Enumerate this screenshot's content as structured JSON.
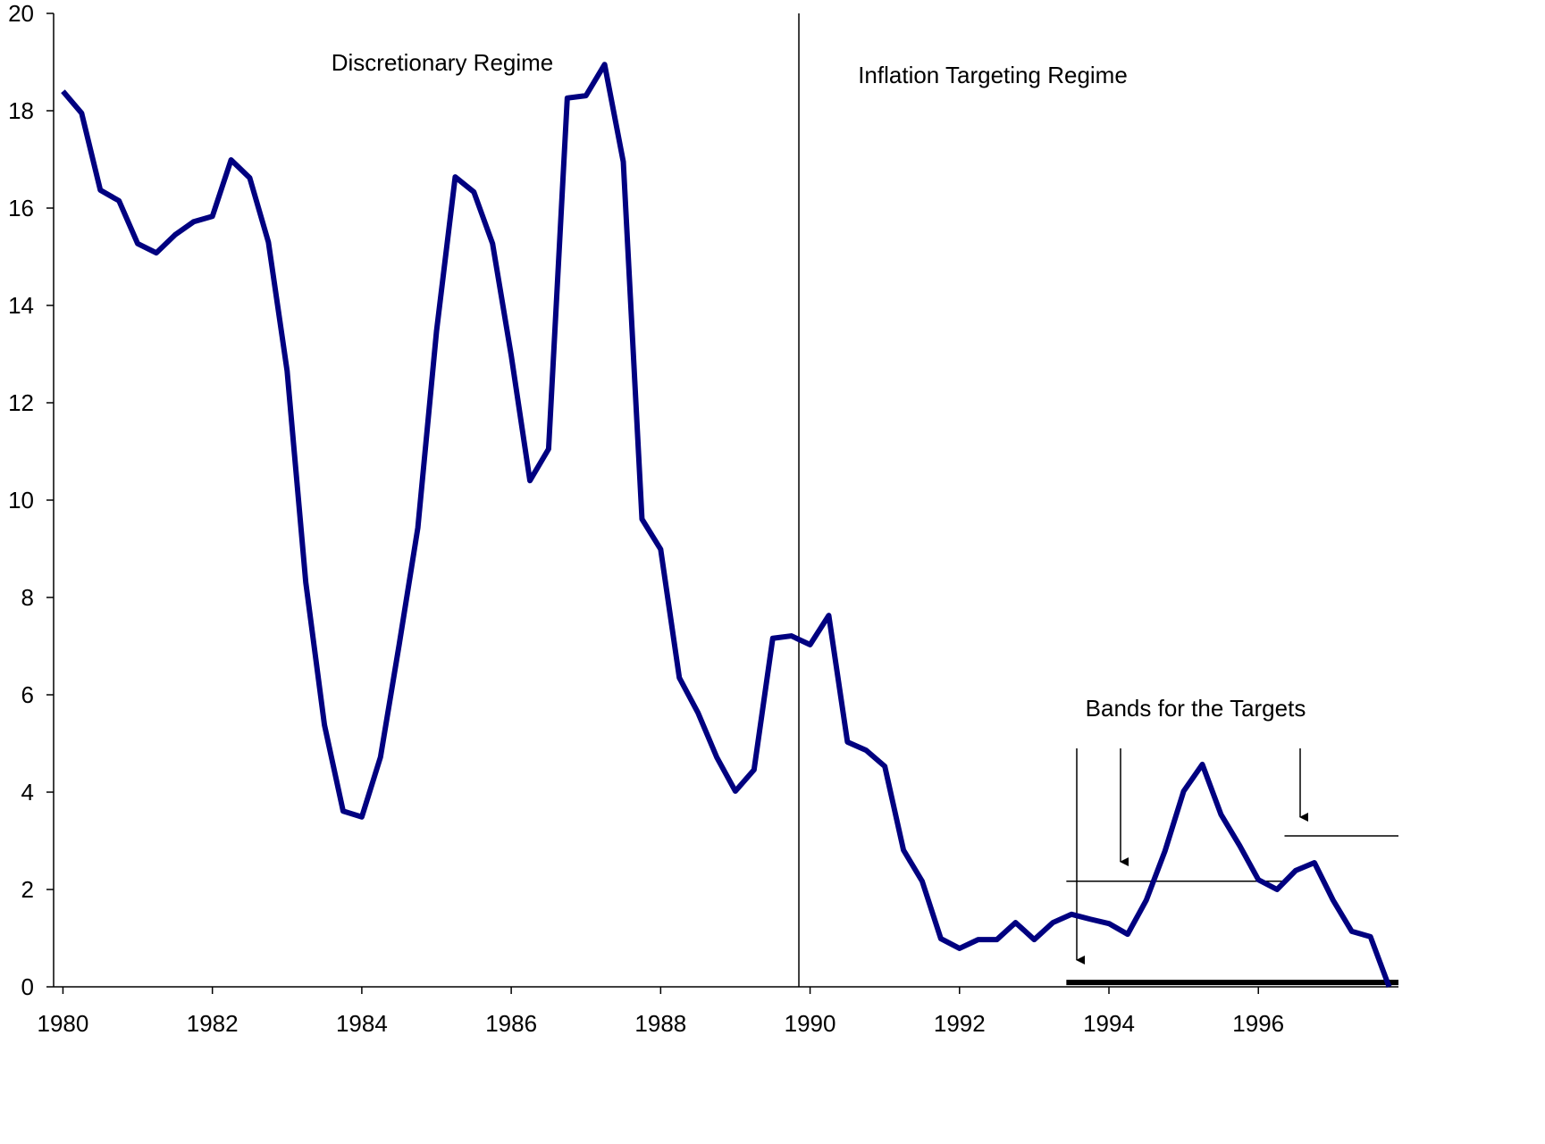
{
  "chart_data": {
    "type": "line",
    "annotations": [
      "Discretionary Regime",
      "Inflation Targeting Regime",
      "Bands for the Targets"
    ],
    "x": [
      1980,
      1980.25,
      1980.5,
      1980.75,
      1981,
      1981.25,
      1981.5,
      1981.75,
      1982,
      1982.25,
      1982.5,
      1982.75,
      1983,
      1983.25,
      1983.5,
      1983.75,
      1984,
      1984.25,
      1984.5,
      1984.75,
      1985,
      1985.25,
      1985.5,
      1985.75,
      1986,
      1986.25,
      1986.5,
      1986.75,
      1987,
      1987.25,
      1987.5,
      1987.75,
      1988,
      1988.25,
      1988.5,
      1988.75,
      1989,
      1989.25,
      1989.5,
      1989.75,
      1990,
      1990.25,
      1990.5,
      1990.75,
      1991,
      1991.25,
      1991.5,
      1991.75,
      1992,
      1992.25,
      1992.5,
      1992.75,
      1993,
      1993.25,
      1993.5,
      1993.75,
      1994,
      1994.25,
      1994.5,
      1994.75,
      1995,
      1995.25,
      1995.5,
      1995.75,
      1996,
      1996.25,
      1996.5,
      1996.75,
      1997,
      1997.25,
      1997.5,
      1997.75
    ],
    "series": [
      {
        "color": "#000080",
        "values": [
          18.4,
          17.95,
          16.37,
          16.15,
          15.27,
          15.08,
          15.45,
          15.72,
          15.83,
          16.99,
          16.62,
          15.3,
          12.66,
          8.31,
          5.38,
          3.61,
          3.49,
          4.72,
          7.03,
          9.43,
          13.47,
          16.64,
          16.33,
          15.27,
          12.97,
          10.4,
          11.05,
          18.26,
          18.31,
          18.95,
          16.95,
          9.61,
          8.99,
          6.35,
          5.63,
          4.72,
          4.02,
          4.46,
          7.16,
          7.21,
          7.03,
          7.63,
          5.03,
          4.86,
          4.53,
          2.81,
          2.17,
          0.99,
          0.79,
          0.97,
          0.97,
          1.32,
          0.97,
          1.32,
          1.49,
          1.39,
          1.3,
          1.08,
          1.78,
          2.79,
          4.02,
          4.57,
          3.54,
          2.9,
          2.2,
          2.0,
          2.39,
          2.55,
          1.78,
          1.14,
          1.03,
          0.0
        ]
      }
    ],
    "regime_change": 1989.85,
    "bands": [
      {
        "x": [
          1993.43,
          1996.35
        ],
        "y": 2.17
      },
      {
        "x": [
          1996.35,
          1997.875
        ],
        "y": 3.1
      },
      {
        "x": [
          1993.43,
          1997.875
        ],
        "y": 0.09
      }
    ],
    "xlim": [
      1979.875,
      1997.875
    ],
    "xticks": [
      1980,
      1982,
      1984,
      1986,
      1988,
      1990,
      1992,
      1994,
      1996
    ],
    "ylim": [
      0,
      20
    ],
    "yticks": [
      0,
      2,
      4,
      6,
      8,
      10,
      12,
      14,
      16,
      18,
      20
    ]
  }
}
